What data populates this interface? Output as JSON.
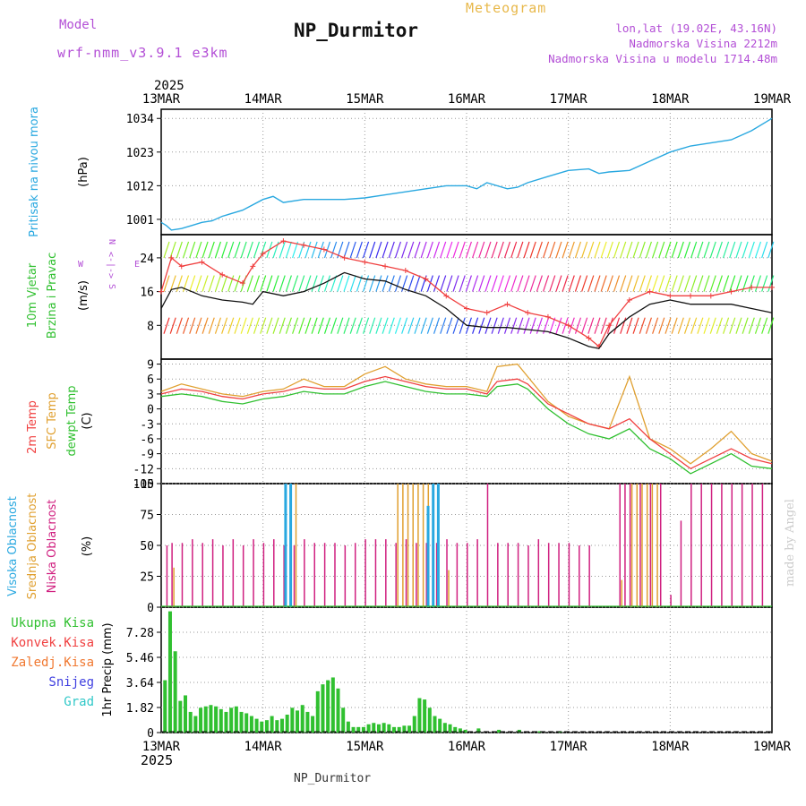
{
  "header": {
    "model_label": "Model",
    "model_name": "wrf-nmm_v3.9.1 e3km",
    "title": "Meteogram",
    "station": "NP_Durmitor",
    "lonlat": "lon,lat (19.02E, 43.16N)",
    "altitude": "Nadmorska Visina 2212m",
    "model_altitude": "Nadmorska Visina u modelu 1714.48m"
  },
  "footer": {
    "station": "NP_Durmitor",
    "credit": "made by Angel"
  },
  "colors": {
    "pressure": "#29a8e0",
    "wind_speed": "#111111",
    "wind_gust": "#f04040",
    "temp2m": "#f04040",
    "sfc": "#e0a030",
    "dewpt": "#30c030",
    "high": "#29a8e0",
    "mid": "#e0a030",
    "low": "#d02080",
    "total": "#30c030",
    "konv": "#f04040",
    "zal": "#f07830",
    "snow": "#4040e0",
    "grad": "#30c8c8",
    "purple": "#b34fd6"
  },
  "chart_data": [
    {
      "id": "pressure",
      "type": "line",
      "ylabel": "Pritisak na nivou mora",
      "unit": "(hPa)",
      "ylim": [
        996,
        1037
      ],
      "yticks": [
        1001,
        1012,
        1023,
        1034
      ],
      "xlabel_year": "2025",
      "xticks": [
        "13MAR",
        "14MAR",
        "15MAR",
        "16MAR",
        "17MAR",
        "18MAR",
        "19MAR"
      ],
      "x": [
        0,
        0.05,
        0.1,
        0.2,
        0.3,
        0.4,
        0.5,
        0.6,
        0.8,
        1.0,
        1.1,
        1.2,
        1.4,
        1.6,
        1.8,
        2.0,
        2.2,
        2.4,
        2.6,
        2.8,
        3.0,
        3.1,
        3.2,
        3.4,
        3.5,
        3.6,
        3.8,
        4.0,
        4.2,
        4.3,
        4.4,
        4.6,
        4.8,
        5.0,
        5.2,
        5.4,
        5.6,
        5.8,
        6.0
      ],
      "values": [
        1000,
        999,
        997.5,
        998,
        999,
        1000,
        1000.5,
        1002,
        1004,
        1007.5,
        1008.5,
        1006.5,
        1007.5,
        1007.5,
        1007.5,
        1008,
        1009,
        1010,
        1011,
        1012,
        1012,
        1011,
        1013,
        1011,
        1011.5,
        1013,
        1015,
        1017,
        1017.5,
        1016,
        1016.5,
        1017,
        1020,
        1023,
        1025,
        1026,
        1027,
        1030,
        1034
      ]
    },
    {
      "id": "wind",
      "type": "line",
      "ylabel": "10m Vjetar",
      "ylabel2": "Brzina i Pravac",
      "unit": "(m/s)",
      "ylim": [
        0,
        29.5
      ],
      "yticks": [
        8,
        16,
        24
      ],
      "compass": {
        "n": "N",
        "s": "S",
        "e": "E",
        "w": "W",
        "arrows": "<-|->"
      },
      "x": [
        0,
        0.1,
        0.2,
        0.4,
        0.6,
        0.8,
        0.9,
        1.0,
        1.2,
        1.4,
        1.6,
        1.8,
        2.0,
        2.2,
        2.4,
        2.6,
        2.8,
        3.0,
        3.2,
        3.4,
        3.6,
        3.8,
        4.0,
        4.2,
        4.3,
        4.4,
        4.6,
        4.8,
        5.0,
        5.2,
        5.4,
        5.6,
        5.8,
        6.0
      ],
      "speed": [
        12,
        16.5,
        17,
        15,
        14,
        13.5,
        13,
        16,
        15,
        16,
        18,
        20.5,
        19,
        18.5,
        16.5,
        15,
        12,
        8,
        7.5,
        7.5,
        7,
        6.5,
        5,
        3,
        2.5,
        6,
        10,
        13,
        14,
        13,
        13,
        13,
        12,
        11
      ],
      "gust": [
        16,
        24,
        22,
        23,
        20,
        18,
        22,
        25,
        28,
        27,
        26,
        24,
        23,
        22,
        21,
        19,
        15,
        12,
        11,
        13,
        11,
        10,
        8,
        5,
        3,
        8,
        14,
        16,
        15,
        15,
        15,
        16,
        17,
        17
      ]
    },
    {
      "id": "temperature",
      "type": "line",
      "ylabel": "2m Temp",
      "ylabel_sfc": "SFC Temp",
      "ylabel_dew": "dewpt Temp",
      "unit": "(C)",
      "ylim": [
        -15,
        10
      ],
      "yticks": [
        9,
        6,
        3,
        0,
        -3,
        -6,
        -9,
        -12,
        -15
      ],
      "x": [
        0,
        0.2,
        0.4,
        0.6,
        0.8,
        1.0,
        1.2,
        1.4,
        1.6,
        1.8,
        2.0,
        2.2,
        2.4,
        2.6,
        2.8,
        3.0,
        3.2,
        3.3,
        3.5,
        3.6,
        3.8,
        4.0,
        4.2,
        4.4,
        4.6,
        4.8,
        5.0,
        5.2,
        5.4,
        5.6,
        5.8,
        6.0
      ],
      "t2m": [
        3,
        4,
        3.5,
        2.5,
        2,
        3,
        3.5,
        4.5,
        4,
        4,
        5.5,
        6.5,
        5.5,
        4.5,
        4,
        4,
        3,
        5.5,
        6,
        5,
        1,
        -1,
        -3,
        -4,
        -2,
        -6,
        -9,
        -12,
        -10,
        -8,
        -10,
        -11
      ],
      "sfc": [
        3.5,
        5,
        4,
        3,
        2.5,
        3.5,
        4,
        6,
        4.5,
        4.5,
        7,
        8.5,
        6,
        5,
        4.5,
        4.5,
        3.5,
        8.5,
        9,
        6.5,
        1.5,
        -1.5,
        -3,
        -4,
        6.5,
        -6,
        -8,
        -11,
        -8,
        -4.5,
        -9,
        -10.5
      ],
      "dew": [
        2.5,
        3,
        2.5,
        1.5,
        1,
        2,
        2.5,
        3.5,
        3,
        3,
        4.5,
        5.5,
        4.5,
        3.5,
        3,
        3,
        2.5,
        4.5,
        5,
        4,
        0,
        -3,
        -5,
        -6,
        -4,
        -8,
        -10,
        -13,
        -11,
        -9,
        -11.5,
        -12
      ]
    },
    {
      "id": "clouds",
      "type": "bar",
      "ylabel_high": "Visoka Oblacnost",
      "ylabel_mid": "Srednja Oblacnost",
      "ylabel_low": "Niska Oblacnost",
      "unit": "(%)",
      "ylim": [
        0,
        100
      ],
      "yticks": [
        0,
        25,
        50,
        75,
        100
      ],
      "low_x": [
        0.05,
        0.1,
        0.2,
        0.3,
        0.4,
        0.5,
        0.6,
        0.7,
        0.8,
        0.9,
        1.0,
        1.1,
        1.2,
        1.3,
        1.4,
        1.5,
        1.6,
        1.7,
        1.8,
        1.9,
        2.0,
        2.1,
        2.2,
        2.3,
        2.4,
        2.5,
        2.6,
        2.7,
        2.8,
        2.9,
        3.0,
        3.1,
        3.2,
        3.3,
        3.4,
        3.5,
        3.6,
        3.7,
        3.8,
        3.9,
        4.0,
        4.1,
        4.2,
        4.5,
        4.55,
        4.6,
        4.7,
        4.8,
        4.9,
        5.0,
        5.1,
        5.2,
        5.3,
        5.4,
        5.5,
        5.6,
        5.7,
        5.8,
        5.9
      ],
      "low_values": [
        50,
        52,
        52,
        55,
        52,
        55,
        50,
        55,
        50,
        55,
        52,
        55,
        50,
        50,
        55,
        52,
        52,
        52,
        50,
        52,
        55,
        55,
        55,
        52,
        55,
        52,
        52,
        52,
        55,
        52,
        52,
        55,
        100,
        52,
        52,
        52,
        50,
        55,
        52,
        52,
        52,
        50,
        50,
        100,
        100,
        100,
        100,
        100,
        100,
        10,
        70,
        100,
        100,
        100,
        100,
        100,
        100,
        100,
        100
      ],
      "mid_x": [
        0.1,
        1.3,
        2.3,
        2.35,
        2.4,
        2.45,
        2.5,
        2.55,
        2.6,
        2.7,
        2.8,
        4.5,
        4.6,
        4.65,
        4.7,
        4.75,
        4.8,
        4.85
      ],
      "mid_values": [
        32,
        100,
        100,
        100,
        100,
        100,
        100,
        100,
        100,
        100,
        30,
        22,
        100,
        100,
        100,
        100,
        100,
        100
      ],
      "high_x": [
        1.2,
        1.25,
        2.6,
        2.65,
        2.7
      ],
      "high_values": [
        100,
        100,
        82,
        100,
        100
      ]
    },
    {
      "id": "precip",
      "type": "bar",
      "ylabel": "1hr Precip",
      "unit": "(mm)",
      "legend": [
        "Ukupna Kisa",
        "Konvek.Kisa",
        "Zaledj.Kisa",
        "Snijeg",
        "Grad"
      ],
      "ylim": [
        0,
        9.1
      ],
      "yticks": [
        0,
        1.82,
        3.64,
        5.46,
        7.28
      ],
      "xticks": [
        "13MAR",
        "14MAR",
        "15MAR",
        "16MAR",
        "17MAR",
        "18MAR",
        "19MAR"
      ],
      "xlabel_year": "2025",
      "total_x": [
        0.02,
        0.07,
        0.12,
        0.17,
        0.22,
        0.27,
        0.32,
        0.37,
        0.42,
        0.47,
        0.52,
        0.57,
        0.62,
        0.67,
        0.72,
        0.77,
        0.82,
        0.87,
        0.92,
        0.97,
        1.02,
        1.07,
        1.12,
        1.17,
        1.22,
        1.27,
        1.32,
        1.37,
        1.42,
        1.47,
        1.52,
        1.57,
        1.62,
        1.67,
        1.72,
        1.77,
        1.82,
        1.87,
        1.92,
        1.97,
        2.02,
        2.07,
        2.12,
        2.17,
        2.22,
        2.27,
        2.32,
        2.37,
        2.42,
        2.47,
        2.52,
        2.57,
        2.62,
        2.67,
        2.72,
        2.77,
        2.82,
        2.87,
        2.92,
        2.97,
        3.1,
        3.3,
        3.5,
        3.7,
        3.9
      ],
      "total_values": [
        3.8,
        8.8,
        5.9,
        2.3,
        2.7,
        1.5,
        1.2,
        1.8,
        1.9,
        2,
        1.9,
        1.7,
        1.5,
        1.8,
        1.9,
        1.5,
        1.4,
        1.2,
        1,
        0.8,
        0.9,
        1.2,
        0.9,
        1,
        1.3,
        1.8,
        1.6,
        2,
        1.5,
        1.2,
        3,
        3.5,
        3.8,
        4,
        3.2,
        1.8,
        0.8,
        0.4,
        0.4,
        0.4,
        0.6,
        0.7,
        0.6,
        0.7,
        0.6,
        0.4,
        0.4,
        0.5,
        0.5,
        1.2,
        2.5,
        2.4,
        1.8,
        1.2,
        1,
        0.7,
        0.6,
        0.4,
        0.3,
        0.2,
        0.3,
        0.2,
        0.2,
        0.1,
        0.1
      ]
    }
  ]
}
